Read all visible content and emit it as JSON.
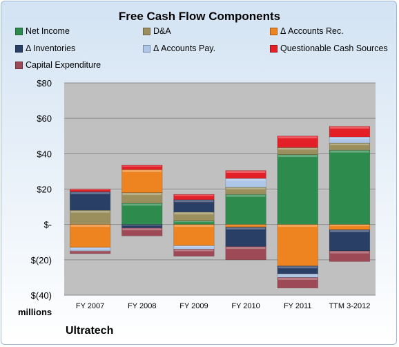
{
  "chart_data": {
    "type": "bar",
    "stacked": true,
    "title": "Free Cash Flow Components",
    "categories": [
      "FY 2007",
      "FY 2008",
      "FY 2009",
      "FY 2010",
      "FY 2011",
      "TTM 3-2012"
    ],
    "ylim": [
      -40,
      80
    ],
    "yticks": [
      80,
      60,
      40,
      20,
      0,
      -20,
      -40
    ],
    "ytick_labels": [
      "$80",
      "$60",
      "$40",
      "$20",
      "$-",
      "$(20)",
      "$(40)"
    ],
    "unit_label": "millions",
    "legend_position": "top",
    "grid": true,
    "series": [
      {
        "name": "Net Income",
        "color": "#2e8b4e",
        "values": [
          0,
          12,
          2,
          17,
          39.5,
          42
        ]
      },
      {
        "name": "D&A",
        "color": "#9c8f5e",
        "values": [
          8,
          6,
          5,
          4,
          4,
          4
        ]
      },
      {
        "name": "Δ Accounts Rec.",
        "color": "#ee8420",
        "values": [
          -13,
          13,
          -12,
          -1.5,
          -23.5,
          -3
        ]
      },
      {
        "name": "Δ Inventories",
        "color": "#2a3f66",
        "values": [
          10.5,
          -2,
          7,
          -11,
          -4.5,
          -12
        ]
      },
      {
        "name": "Δ Accounts Pay.",
        "color": "#aec6e8",
        "values": [
          -2,
          0,
          -2,
          5,
          -2,
          3.5
        ]
      },
      {
        "name": "Questionable Cash Sources",
        "color": "#e32027",
        "values": [
          1.5,
          2.5,
          3,
          4.5,
          6.5,
          6
        ]
      },
      {
        "name": "Capital Expenditure",
        "color": "#9e4a56",
        "values": [
          -1.5,
          -4.5,
          -4,
          -7.5,
          -6,
          -6
        ]
      }
    ]
  },
  "footer": {
    "company": "Ultratech"
  }
}
